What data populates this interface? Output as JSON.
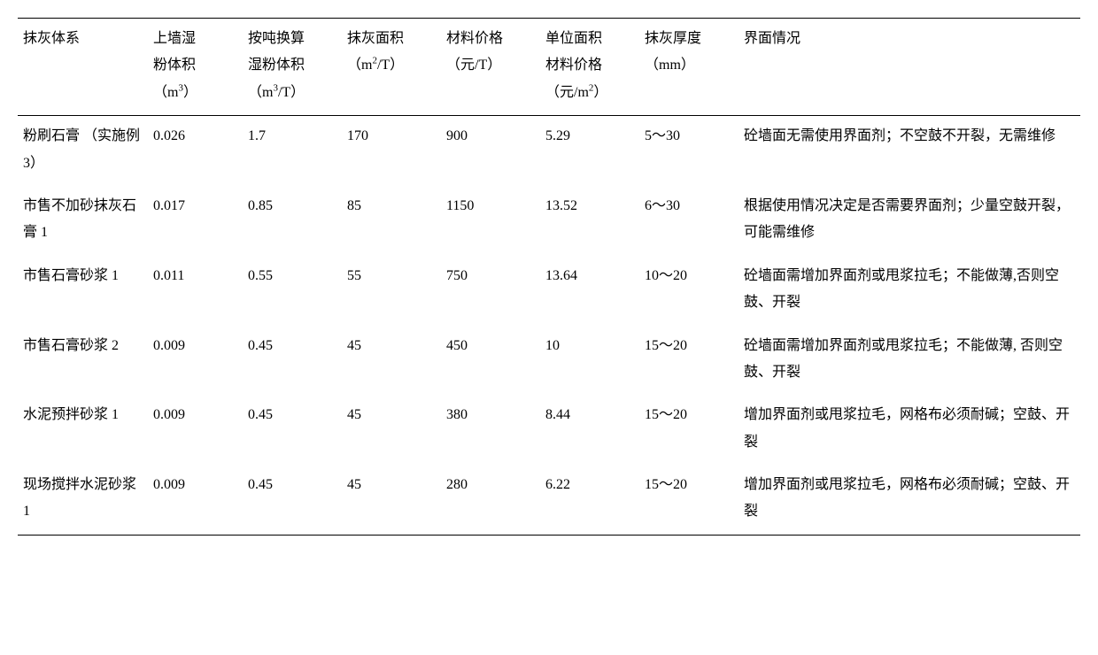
{
  "table": {
    "columns": [
      {
        "key": "system",
        "label": "抹灰体系"
      },
      {
        "key": "wetVol",
        "label": "上墙湿粉体积（m³）",
        "html": "上墙湿<br>粉体积<br>（m<sup>3</sup>）"
      },
      {
        "key": "wetVolPerT",
        "label": "按吨换算湿粉体积（m³/T）",
        "html": "按吨换算<br>湿粉体积<br>（m<sup>3</sup>/T）"
      },
      {
        "key": "area",
        "label": "抹灰面积（m²/T）",
        "html": "抹灰面积<br>（m<sup>2</sup>/T）"
      },
      {
        "key": "matPrice",
        "label": "材料价格（元/T）",
        "html": "材料价格<br>（元/T）"
      },
      {
        "key": "unitPrice",
        "label": "单位面积材料价格（元/m²）",
        "html": "单位面积<br>材料价格<br>（元/m<sup>2</sup>）"
      },
      {
        "key": "thickness",
        "label": "抹灰厚度（mm）",
        "html": "抹灰厚度<br>（mm）"
      },
      {
        "key": "interface",
        "label": "界面情况"
      }
    ],
    "rows": [
      {
        "system": "粉刷石膏\n（实施例 3）",
        "wetVol": "0.026",
        "wetVolPerT": "1.7",
        "area": "170",
        "matPrice": "900",
        "unitPrice": "5.29",
        "thickness": "5～30",
        "interface": "砼墙面无需使用界面剂；不空鼓不开裂，无需维修"
      },
      {
        "system": "市售不加砂抹灰石膏 1",
        "wetVol": "0.017",
        "wetVolPerT": "0.85",
        "area": "85",
        "matPrice": "1150",
        "unitPrice": "13.52",
        "thickness": "6～30",
        "interface": "根据使用情况决定是否需要界面剂；少量空鼓开裂，可能需维修"
      },
      {
        "system": "市售石膏砂浆 1",
        "wetVol": "0.011",
        "wetVolPerT": "0.55",
        "area": "55",
        "matPrice": "750",
        "unitPrice": "13.64",
        "thickness": "10～20",
        "interface": "砼墙面需增加界面剂或甩浆拉毛；不能做薄,否则空鼓、开裂"
      },
      {
        "system": "市售石膏砂浆 2",
        "wetVol": "0.009",
        "wetVolPerT": "0.45",
        "area": "45",
        "matPrice": "450",
        "unitPrice": "10",
        "thickness": "15～20",
        "interface": "砼墙面需增加界面剂或甩浆拉毛；不能做薄, 否则空鼓、开裂"
      },
      {
        "system": "水泥预拌砂浆 1",
        "wetVol": "0.009",
        "wetVolPerT": "0.45",
        "area": "45",
        "matPrice": "380",
        "unitPrice": "8.44",
        "thickness": "15～20",
        "interface": "增加界面剂或甩浆拉毛，网格布必须耐碱；空鼓、开裂"
      },
      {
        "system": "现场搅拌水泥砂浆 1",
        "wetVol": "0.009",
        "wetVolPerT": "0.45",
        "area": "45",
        "matPrice": "280",
        "unitPrice": "6.22",
        "thickness": "15～20",
        "interface": "增加界面剂或甩浆拉毛，网格布必须耐碱；空鼓、开裂"
      }
    ],
    "background_color": "#ffffff",
    "text_color": "#000000",
    "border_color": "#000000",
    "top_border_width": 1.5,
    "header_bottom_border_width": 1,
    "bottom_border_width": 1.5,
    "font_size": 16,
    "line_height": 1.9
  }
}
